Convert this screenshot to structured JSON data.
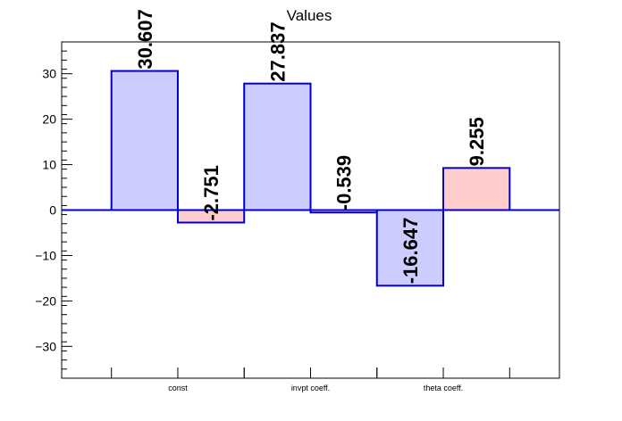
{
  "chart_data": {
    "type": "bar",
    "title": "Values",
    "categories": [
      "const",
      "invpt coeff.",
      "theta coeff."
    ],
    "series": [
      {
        "values": [
          30.607,
          27.837,
          -16.647
        ],
        "fill": "#ccccff",
        "stroke": "#0000cc"
      },
      {
        "values": [
          -2.751,
          -0.539,
          9.255
        ],
        "fill": "#ffcccc",
        "stroke": "#0000cc"
      }
    ],
    "data_labels": [
      [
        "30.607",
        "27.837",
        "-16.647"
      ],
      [
        "-2.751",
        "-0.539",
        "9.255"
      ]
    ],
    "yticks": [
      -30,
      -20,
      -10,
      0,
      10,
      20,
      30
    ],
    "ytick_labels": [
      "−30",
      "−20",
      "−10",
      "0",
      "10",
      "20",
      "30"
    ],
    "ylim": [
      -37,
      37
    ],
    "xlabel": "",
    "ylabel": "",
    "grid": false,
    "legend": "none",
    "zero_line_color": "#0000cc"
  }
}
